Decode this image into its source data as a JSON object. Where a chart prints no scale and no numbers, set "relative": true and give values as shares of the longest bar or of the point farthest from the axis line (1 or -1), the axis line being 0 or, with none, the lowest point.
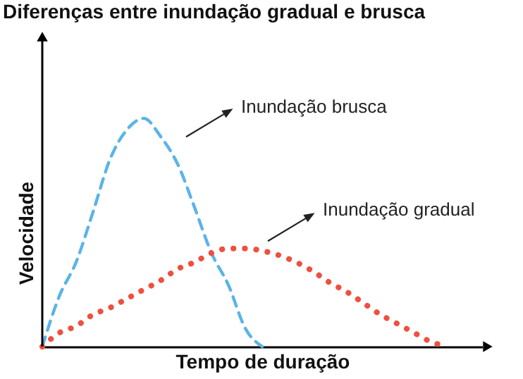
{
  "chart_data": {
    "type": "line",
    "title": "Diferenças entre inundação gradual e brusca",
    "xlabel": "Tempo de duração",
    "ylabel": "Velocidade",
    "relative": true,
    "grid": false,
    "categories": [
      null,
      null,
      null,
      null,
      null,
      null,
      null,
      null,
      null,
      null,
      null,
      null,
      null,
      null,
      null,
      null,
      null,
      null,
      null,
      null,
      null,
      null,
      null,
      null,
      null,
      null,
      null
    ],
    "series": [
      {
        "name": "Inundação brusca",
        "color": "#5ab4e8",
        "line_style": "dashed",
        "values": [
          0,
          0.22,
          0.37,
          0.59,
          0.82,
          0.95,
          1,
          0.92,
          0.8,
          0.61,
          0.41,
          0.27,
          0.08,
          0,
          null,
          null,
          null,
          null,
          null,
          null,
          null,
          null,
          null,
          null,
          null,
          null,
          null
        ]
      },
      {
        "name": "Inundação gradual",
        "color": "#ef4f3f",
        "line_style": "dotted",
        "values": [
          0,
          0.06,
          0.09,
          0.14,
          0.17,
          0.21,
          0.25,
          0.29,
          0.34,
          0.37,
          0.41,
          0.43,
          0.43,
          0.42,
          0.4,
          0.37,
          0.33,
          0.28,
          0.24,
          0.19,
          0.14,
          0.1,
          0.06,
          0.02,
          0,
          null,
          null
        ]
      }
    ]
  }
}
